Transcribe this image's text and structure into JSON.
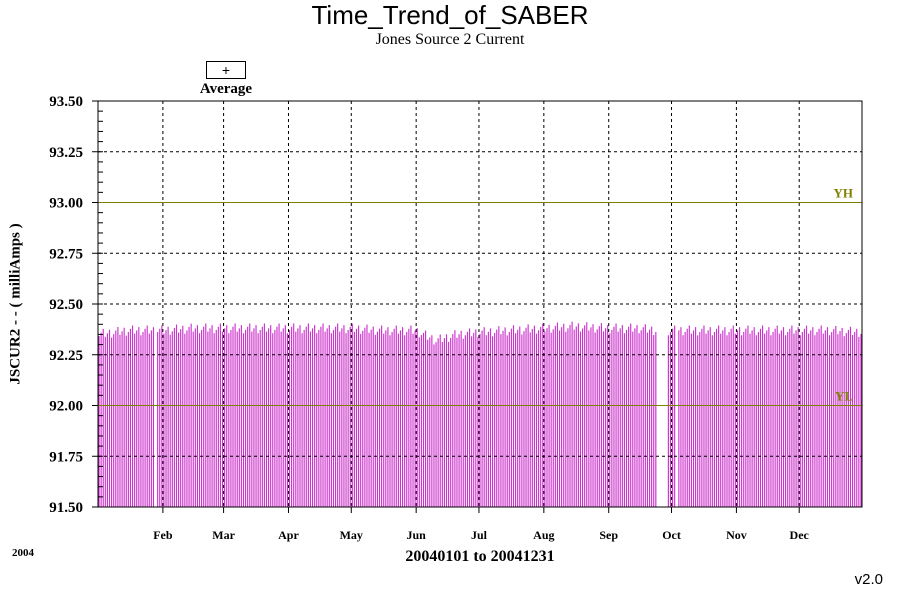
{
  "chart_data": {
    "type": "bar",
    "title": "Time_Trend_of_SABER",
    "subtitle": "Jones Source 2 Current",
    "xlabel": "20040101 to 20041231",
    "ylabel": "JSCUR2 - - ( milliAmps )",
    "year_label": "2004",
    "version": "v2.0",
    "legend": {
      "symbol": "+",
      "label": "Average",
      "placement": "top-left"
    },
    "ylim": [
      91.5,
      93.5
    ],
    "yticks": [
      "91.50",
      "91.75",
      "92.00",
      "92.25",
      "92.50",
      "92.75",
      "93.00",
      "93.25",
      "93.50"
    ],
    "xlim_days": [
      1,
      366
    ],
    "months": [
      {
        "label": "Feb",
        "day": 32
      },
      {
        "label": "Mar",
        "day": 61
      },
      {
        "label": "Apr",
        "day": 92
      },
      {
        "label": "May",
        "day": 122
      },
      {
        "label": "Jun",
        "day": 153
      },
      {
        "label": "Jul",
        "day": 183
      },
      {
        "label": "Aug",
        "day": 214
      },
      {
        "label": "Sep",
        "day": 245
      },
      {
        "label": "Oct",
        "day": 275
      },
      {
        "label": "Nov",
        "day": 306
      },
      {
        "label": "Dec",
        "day": 336
      }
    ],
    "limits": [
      {
        "name": "YH",
        "value": 93.0,
        "color": "#808000"
      },
      {
        "name": "YL",
        "value": 92.0,
        "color": "#808000"
      }
    ],
    "grid": true,
    "bar_color": "#cc33cc",
    "series": [
      {
        "values": [
          {
            "x": "2004-01-01",
            "y": 92.35
          },
          {
            "x": "2004-01-15",
            "y": 92.37
          },
          {
            "x": "2004-01-31",
            "y": 92.37
          },
          {
            "x": "2004-02-15",
            "y": 92.38
          },
          {
            "x": "2004-02-29",
            "y": 92.38
          },
          {
            "x": "2004-03-15",
            "y": 92.38
          },
          {
            "x": "2004-03-31",
            "y": 92.38
          },
          {
            "x": "2004-04-15",
            "y": 92.38
          },
          {
            "x": "2004-04-30",
            "y": 92.38
          },
          {
            "x": "2004-05-15",
            "y": 92.37
          },
          {
            "x": "2004-05-31",
            "y": 92.37
          },
          {
            "x": "2004-06-10",
            "y": 92.32
          },
          {
            "x": "2004-06-20",
            "y": 92.35
          },
          {
            "x": "2004-06-30",
            "y": 92.36
          },
          {
            "x": "2004-07-15",
            "y": 92.37
          },
          {
            "x": "2004-07-31",
            "y": 92.38
          },
          {
            "x": "2004-08-15",
            "y": 92.39
          },
          {
            "x": "2004-08-31",
            "y": 92.38
          },
          {
            "x": "2004-09-15",
            "y": 92.38
          },
          {
            "x": "2004-09-23",
            "y": 92.37
          },
          {
            "x": "2004-10-15",
            "y": 92.37
          },
          {
            "x": "2004-10-31",
            "y": 92.37
          },
          {
            "x": "2004-11-15",
            "y": 92.37
          },
          {
            "x": "2004-11-30",
            "y": 92.37
          },
          {
            "x": "2004-12-15",
            "y": 92.37
          },
          {
            "x": "2004-12-31",
            "y": 92.36
          }
        ],
        "gaps": [
          [
            "2004-01-28",
            "2004-01-28"
          ],
          [
            "2004-09-24",
            "2004-09-28"
          ],
          [
            "2004-10-03",
            "2004-10-03"
          ]
        ]
      }
    ]
  }
}
